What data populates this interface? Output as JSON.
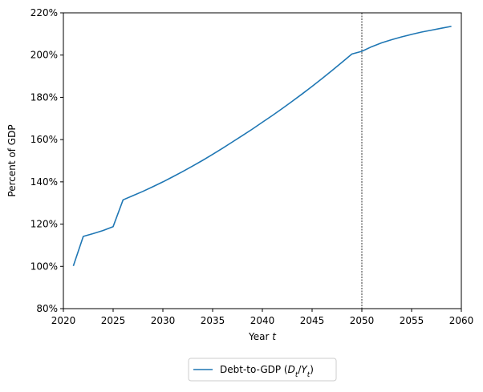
{
  "chart_data": {
    "type": "line",
    "xlabel_text": "Year ",
    "xlabel_var": "t",
    "ylabel": "Percent of GDP",
    "xlim": [
      2020,
      2060
    ],
    "ylim": [
      80,
      220
    ],
    "x_ticks": [
      2020,
      2025,
      2030,
      2035,
      2040,
      2045,
      2050,
      2055,
      2060
    ],
    "y_ticks": [
      80,
      100,
      120,
      140,
      160,
      180,
      200,
      220
    ],
    "y_tick_suffix": "%",
    "grid": false,
    "legend_position": "below",
    "vline": {
      "x": 2050,
      "style": "dashed",
      "color": "#000000"
    },
    "series": [
      {
        "name": "Debt-to-GDP (D_t/Y_t)",
        "legend_text": "Debt-to-GDP (",
        "legend_D": "D",
        "legend_Y": "Y",
        "legend_sub": "t",
        "color": "#1f77b4",
        "x": [
          2021,
          2022,
          2023,
          2024,
          2025,
          2026,
          2027,
          2028,
          2029,
          2030,
          2031,
          2032,
          2033,
          2034,
          2035,
          2036,
          2037,
          2038,
          2039,
          2040,
          2041,
          2042,
          2043,
          2044,
          2045,
          2046,
          2047,
          2048,
          2049,
          2050,
          2051,
          2052,
          2053,
          2054,
          2055,
          2056,
          2057,
          2058,
          2059
        ],
        "values": [
          100.2,
          114.2,
          115.5,
          117.0,
          118.8,
          131.5,
          133.5,
          135.5,
          137.7,
          140.0,
          142.4,
          144.9,
          147.5,
          150.2,
          153.0,
          155.9,
          158.9,
          161.9,
          165.0,
          168.2,
          171.4,
          174.7,
          178.1,
          181.6,
          185.2,
          188.9,
          192.7,
          196.6,
          200.5,
          201.8,
          204.0,
          205.8,
          207.3,
          208.6,
          209.8,
          210.9,
          211.8,
          212.7,
          213.6
        ]
      }
    ]
  }
}
